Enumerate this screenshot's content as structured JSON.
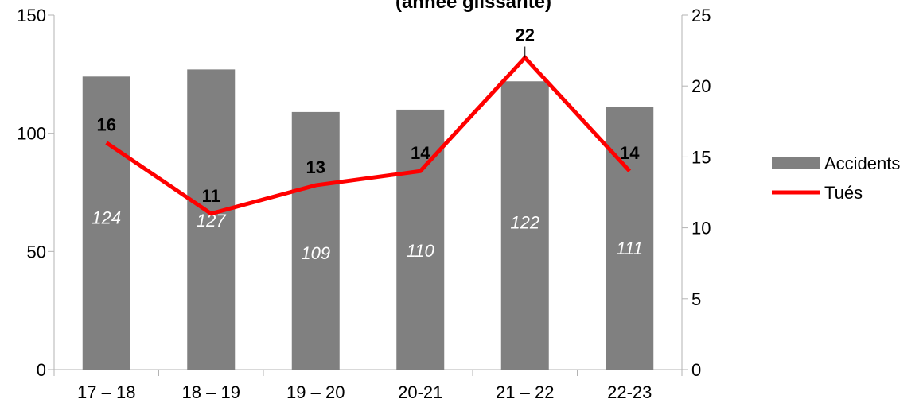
{
  "chart_data": {
    "type": "bar",
    "title": "(année glissante)",
    "categories": [
      "17 – 18",
      "18 – 19",
      "19 – 20",
      "20-21",
      "21 – 22",
      "22-23"
    ],
    "series": [
      {
        "name": "Accidents",
        "type": "bar",
        "axis": "left",
        "color": "#808080",
        "values": [
          124,
          127,
          109,
          110,
          122,
          111
        ]
      },
      {
        "name": "Tués",
        "type": "line",
        "axis": "right",
        "color": "#ff0000",
        "values": [
          16,
          11,
          13,
          14,
          22,
          14
        ]
      }
    ],
    "y_left": {
      "lim": [
        0,
        150
      ],
      "ticks": [
        "0",
        "50",
        "100",
        "150"
      ]
    },
    "y_right": {
      "lim": [
        0,
        25
      ],
      "ticks": [
        "0",
        "5",
        "10",
        "15",
        "20",
        "25"
      ]
    },
    "grid": false,
    "legend_position": "right"
  }
}
